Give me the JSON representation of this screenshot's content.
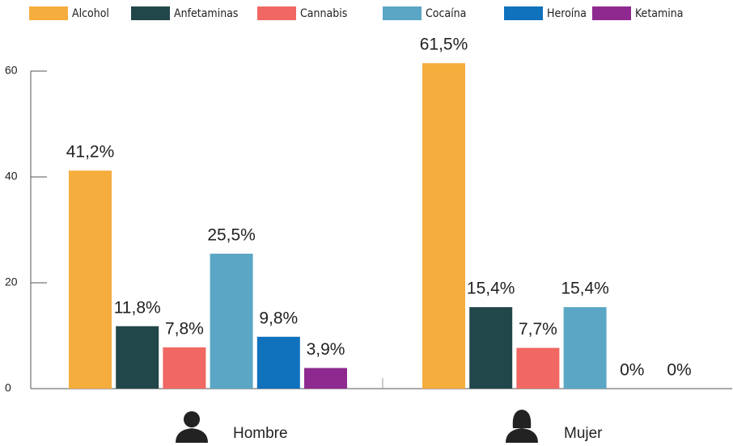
{
  "chart_data": {
    "type": "bar",
    "categories": [
      "Hombre",
      "Mujer"
    ],
    "series": [
      {
        "name": "Alcohol",
        "color": "#f5ad3d",
        "values": [
          41.2,
          61.5
        ],
        "value_labels": [
          "41,2%",
          "61,5%"
        ]
      },
      {
        "name": "Anfetaminas",
        "color": "#22474a",
        "values": [
          11.8,
          15.4
        ],
        "value_labels": [
          "11,8%",
          "15,4%"
        ]
      },
      {
        "name": "Cannabis",
        "color": "#f06763",
        "values": [
          7.8,
          7.7
        ],
        "value_labels": [
          "7,8%",
          "7,7%"
        ]
      },
      {
        "name": "Cocaína",
        "color": "#5ba6c4",
        "values": [
          25.5,
          15.4
        ],
        "value_labels": [
          "25,5%",
          "15,4%"
        ]
      },
      {
        "name": "Heroína",
        "color": "#1071bd",
        "values": [
          9.8,
          0
        ],
        "value_labels": [
          "9,8%",
          "0%"
        ]
      },
      {
        "name": "Ketamina",
        "color": "#8e2a8f",
        "values": [
          3.9,
          0
        ],
        "value_labels": [
          "3,9%",
          "0%"
        ]
      }
    ],
    "ylim": [
      0,
      60
    ],
    "yticks": [
      0,
      20,
      40,
      60
    ],
    "legend": "top"
  }
}
